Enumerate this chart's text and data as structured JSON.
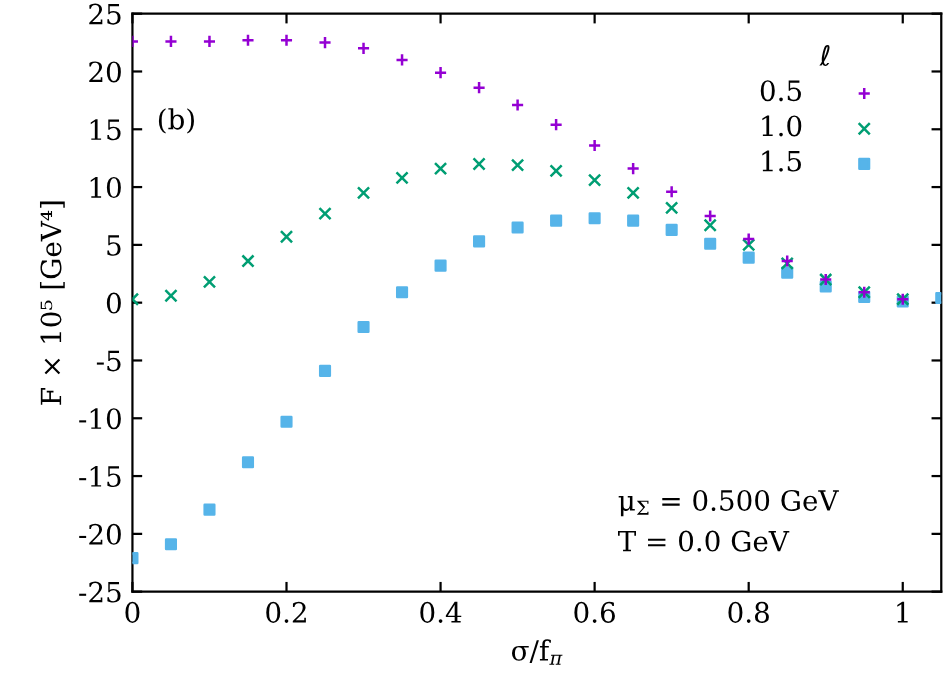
{
  "chart_data": {
    "type": "scatter",
    "xlabel": "σ/f$_{π}$",
    "ylabel": "F × 10⁵ [GeV⁴]",
    "legend_title": "ℓ",
    "legend": "top right",
    "x": [
      0,
      0.05,
      0.1,
      0.15,
      0.2,
      0.25,
      0.3,
      0.35,
      0.4,
      0.45,
      0.5,
      0.55,
      0.6,
      0.65,
      0.7,
      0.75,
      0.8,
      0.85,
      0.9,
      0.95,
      1.0,
      1.05
    ],
    "series": [
      {
        "name": "0.5",
        "color": "#9400d3",
        "marker": "plus",
        "values": [
          22.6,
          22.6,
          22.6,
          22.7,
          22.7,
          22.5,
          22.0,
          21.0,
          19.9,
          18.6,
          17.1,
          15.4,
          13.6,
          11.6,
          9.6,
          7.5,
          5.5,
          3.6,
          2.0,
          0.9,
          0.3,
          null
        ]
      },
      {
        "name": "1.0",
        "color": "#009e73",
        "marker": "cross",
        "values": [
          0.3,
          0.6,
          1.8,
          3.6,
          5.7,
          7.7,
          9.5,
          10.8,
          11.6,
          12.0,
          11.9,
          11.4,
          10.6,
          9.5,
          8.2,
          6.7,
          5.0,
          3.4,
          2.0,
          0.9,
          0.3,
          null
        ]
      },
      {
        "name": "1.5",
        "color": "#56b4e9",
        "marker": "square",
        "values": [
          -22.1,
          -20.9,
          -17.9,
          -13.8,
          -10.3,
          -5.9,
          -2.1,
          0.9,
          3.2,
          5.3,
          6.5,
          7.1,
          7.3,
          7.1,
          6.3,
          5.1,
          3.9,
          2.6,
          1.4,
          0.5,
          0.1,
          0.4
        ]
      }
    ],
    "xlim": [
      0,
      1.05
    ],
    "xticks": [
      0,
      0.2,
      0.4,
      0.6,
      0.8,
      1
    ],
    "ylim": [
      -25,
      25
    ],
    "yticks": [
      -25,
      -20,
      -15,
      -10,
      -5,
      0,
      5,
      10,
      15,
      20,
      25
    ],
    "grid": false,
    "annotations": [
      "(b)",
      "μ$_{Σ}$ = 0.500 GeV",
      "T = 0.0 GeV"
    ]
  }
}
